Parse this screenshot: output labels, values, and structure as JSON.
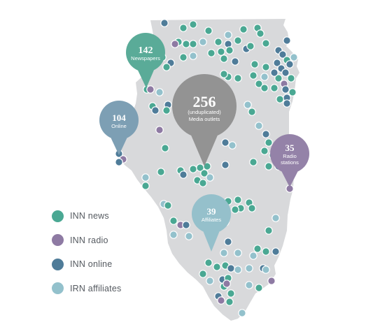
{
  "colors": {
    "state_fill": "#d8d9db",
    "news": "#4aa893",
    "radio": "#8e7aa3",
    "online": "#4f7c99",
    "affiliates": "#93c1cc",
    "outlets": "#939393",
    "newspapers_pin": "#5aab98",
    "online_pin": "#7d9fb4",
    "radio_pin": "#9482a8",
    "affiliates_pin": "#95c0cb"
  },
  "callouts": {
    "newspapers": {
      "number": "142",
      "label": "Newspapers"
    },
    "online": {
      "number": "104",
      "label": "Online"
    },
    "outlets": {
      "number": "256",
      "label_line1": "(unduplicated)",
      "label_line2": "Media outlets"
    },
    "radio": {
      "number": "35",
      "label_line1": "Radio",
      "label_line2": "stations"
    },
    "affiliates": {
      "number": "39",
      "label": "Affiliates"
    }
  },
  "legend": [
    {
      "key": "news",
      "label": "INN news",
      "color": "#4aa893",
      "icon": "circle"
    },
    {
      "key": "radio",
      "label": "INN radio",
      "color": "#8e7aa3",
      "icon": "circle"
    },
    {
      "key": "online",
      "label": "INN online",
      "color": "#4f7c99",
      "icon": "circle"
    },
    {
      "key": "affiliates",
      "label": "IRN affiliates",
      "color": "#93c1cc",
      "icon": "circle"
    }
  ]
}
